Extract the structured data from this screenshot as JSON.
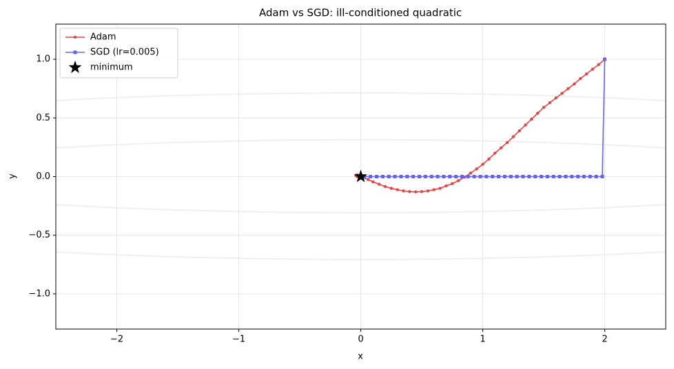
{
  "chart_data": {
    "type": "line",
    "title": "Adam vs SGD: ill-conditioned quadratic",
    "xlabel": "x",
    "ylabel": "y",
    "xlim": [
      -2.5,
      2.5
    ],
    "ylim": [
      -1.3,
      1.3
    ],
    "xticks": [
      {
        "value": -2,
        "label": "−2"
      },
      {
        "value": -1,
        "label": "−1"
      },
      0,
      1,
      2
    ],
    "yticks": [
      {
        "value": -1.0,
        "label": "−1.0"
      },
      {
        "value": -0.5,
        "label": "−0.5"
      },
      {
        "value": 0.0,
        "label": "0.0"
      },
      {
        "value": 0.5,
        "label": "0.5"
      },
      {
        "value": 1.0,
        "label": "1.0"
      }
    ],
    "grid": true,
    "legend": "upper left",
    "series": [
      {
        "name": "Adam",
        "color": "#e24545",
        "marker": "circle",
        "x": [
          2.0,
          1.95,
          1.9,
          1.85,
          1.8,
          1.75,
          1.7,
          1.65,
          1.6,
          1.55,
          1.5,
          1.45,
          1.4,
          1.35,
          1.3,
          1.25,
          1.2,
          1.15,
          1.1,
          1.05,
          1.0,
          0.95,
          0.9,
          0.85,
          0.8,
          0.75,
          0.7,
          0.65,
          0.6,
          0.55,
          0.5,
          0.45,
          0.4,
          0.35,
          0.3,
          0.25,
          0.2,
          0.15,
          0.1,
          0.06,
          0.03,
          0.01,
          -0.01,
          -0.03,
          -0.04,
          -0.03,
          -0.01,
          0.0
        ],
        "values": [
          1.0,
          0.955,
          0.915,
          0.875,
          0.835,
          0.79,
          0.75,
          0.71,
          0.67,
          0.63,
          0.59,
          0.54,
          0.49,
          0.44,
          0.39,
          0.34,
          0.29,
          0.245,
          0.2,
          0.15,
          0.105,
          0.065,
          0.03,
          -0.005,
          -0.035,
          -0.06,
          -0.08,
          -0.1,
          -0.112,
          -0.122,
          -0.128,
          -0.13,
          -0.128,
          -0.122,
          -0.112,
          -0.1,
          -0.085,
          -0.065,
          -0.045,
          -0.025,
          -0.01,
          0.0,
          0.01,
          0.015,
          0.01,
          0.0,
          0.005,
          0.0
        ]
      },
      {
        "name": "SGD (lr=0.005)",
        "color": "#6464e6",
        "marker": "square",
        "x": [
          2.0,
          1.98,
          1.93,
          1.88,
          1.83,
          1.78,
          1.73,
          1.68,
          1.63,
          1.58,
          1.53,
          1.48,
          1.43,
          1.38,
          1.33,
          1.28,
          1.23,
          1.18,
          1.13,
          1.08,
          1.03,
          0.98,
          0.93,
          0.88,
          0.83,
          0.78,
          0.73,
          0.68,
          0.63,
          0.58,
          0.53,
          0.48,
          0.43,
          0.38,
          0.33,
          0.28,
          0.23,
          0.18,
          0.13,
          0.08,
          0.03
        ],
        "values": [
          1.0,
          0.0,
          0.0,
          0.0,
          0.0,
          0.0,
          0.0,
          0.0,
          0.0,
          0.0,
          0.0,
          0.0,
          0.0,
          0.0,
          0.0,
          0.0,
          0.0,
          0.0,
          0.0,
          0.0,
          0.0,
          0.0,
          0.0,
          0.0,
          0.0,
          0.0,
          0.0,
          0.0,
          0.0,
          0.0,
          0.0,
          0.0,
          0.0,
          0.0,
          0.0,
          0.0,
          0.0,
          0.0,
          0.0,
          0.0,
          0.0
        ]
      },
      {
        "name": "minimum",
        "color": "#000000",
        "marker": "star",
        "x": [
          0
        ],
        "values": [
          0
        ]
      }
    ]
  }
}
